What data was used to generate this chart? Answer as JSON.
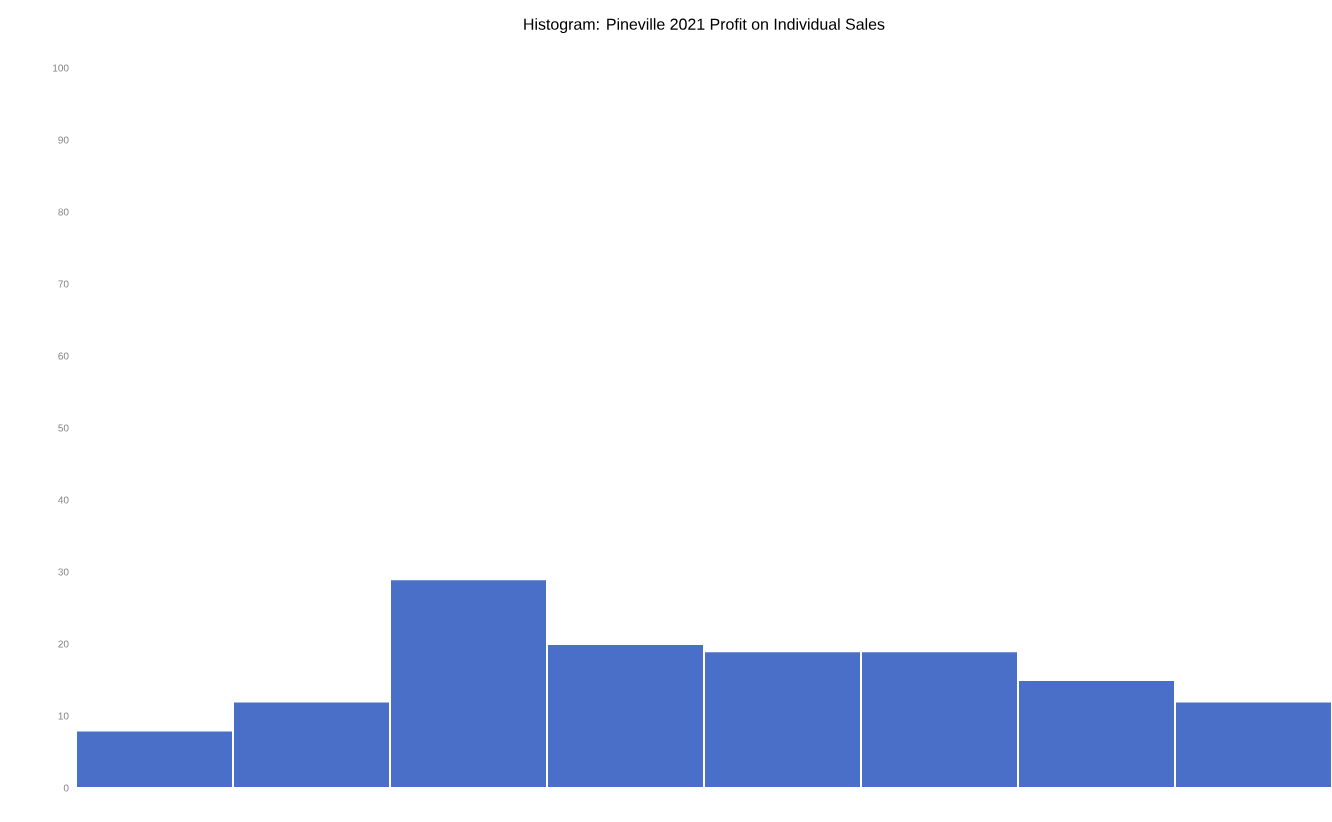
{
  "chart_data": {
    "type": "bar",
    "title": "Histogram: Pineville 2021 Profit on Individual Sales",
    "categories": [
      null,
      null,
      null,
      null,
      null,
      null,
      null,
      null
    ],
    "values": [
      8,
      12,
      29,
      20,
      19,
      19,
      15,
      12
    ],
    "color": "#4a6fc9",
    "ylim": [
      0,
      100
    ],
    "yticks": [
      0,
      10,
      20,
      30,
      40,
      50,
      60,
      70,
      80,
      90,
      100
    ]
  }
}
